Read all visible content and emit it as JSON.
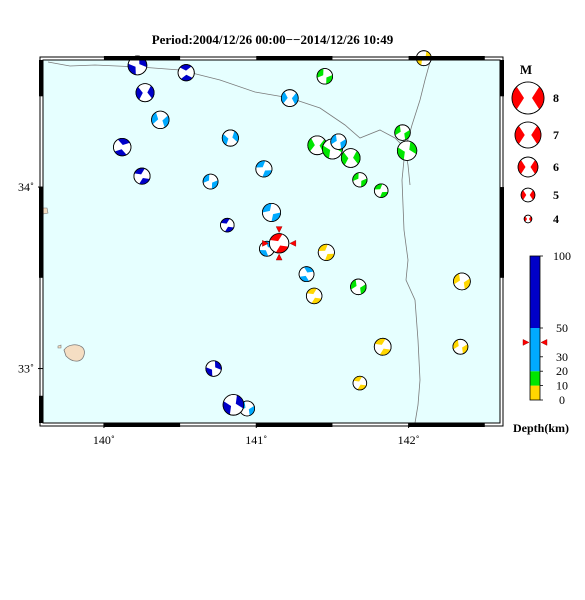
{
  "title": "Period:2004/12/26 00:00−−2014/12/26 10:49",
  "map": {
    "lon_range": [
      139.6,
      142.6
    ],
    "lat_range": [
      32.7,
      34.7
    ],
    "xticks": [
      {
        "value": 140,
        "label": "140˚"
      },
      {
        "value": 141,
        "label": "141˚"
      },
      {
        "value": 142,
        "label": "142˚"
      }
    ],
    "yticks": [
      {
        "value": 33,
        "label": "33˚"
      },
      {
        "value": 34,
        "label": "34˚"
      }
    ],
    "colors": {
      "ocean": "#e6ffff",
      "land": "#f5dec3",
      "coast": "#7a7a7a"
    }
  },
  "legend_magnitude": {
    "header": "M",
    "items": [
      {
        "label": "8",
        "value": 8
      },
      {
        "label": "7",
        "value": 7
      },
      {
        "label": "6",
        "value": 6
      },
      {
        "label": "5",
        "value": 5
      },
      {
        "label": "4",
        "value": 4
      }
    ]
  },
  "legend_depth": {
    "title": "Depth(km)",
    "ticks": [
      {
        "label": "100",
        "value": 100
      },
      {
        "label": "50",
        "value": 50
      },
      {
        "label": "30",
        "value": 30
      },
      {
        "label": "20",
        "value": 20
      },
      {
        "label": "10",
        "value": 10
      },
      {
        "label": "0",
        "value": 0
      }
    ],
    "bands": [
      {
        "from": 0,
        "to": 10,
        "color": "#ffd700"
      },
      {
        "from": 10,
        "to": 20,
        "color": "#00e600"
      },
      {
        "from": 20,
        "to": 50,
        "color": "#00aaff"
      },
      {
        "from": 50,
        "to": 100,
        "color": "#0000c8"
      }
    ],
    "marker_depth": 40
  },
  "events": [
    {
      "lon": 140.22,
      "lat": 34.67,
      "mag": 6.0,
      "depth": 70,
      "strike": 100
    },
    {
      "lon": 140.27,
      "lat": 34.52,
      "mag": 5.9,
      "depth": 70,
      "strike": 130
    },
    {
      "lon": 140.54,
      "lat": 34.63,
      "mag": 5.6,
      "depth": 60,
      "strike": 40
    },
    {
      "lon": 140.37,
      "lat": 34.37,
      "mag": 5.8,
      "depth": 40,
      "strike": 150
    },
    {
      "lon": 140.12,
      "lat": 34.22,
      "mag": 5.8,
      "depth": 70,
      "strike": 60
    },
    {
      "lon": 140.25,
      "lat": 34.06,
      "mag": 5.6,
      "depth": 70,
      "strike": 20
    },
    {
      "lon": 140.83,
      "lat": 34.27,
      "mag": 5.6,
      "depth": 40,
      "strike": 120
    },
    {
      "lon": 141.22,
      "lat": 34.49,
      "mag": 5.7,
      "depth": 40,
      "strike": 140
    },
    {
      "lon": 140.7,
      "lat": 34.03,
      "mag": 5.4,
      "depth": 40,
      "strike": 170
    },
    {
      "lon": 141.05,
      "lat": 34.1,
      "mag": 5.6,
      "depth": 40,
      "strike": 10
    },
    {
      "lon": 140.81,
      "lat": 33.79,
      "mag": 5.2,
      "depth": 60,
      "strike": 20
    },
    {
      "lon": 141.1,
      "lat": 33.86,
      "mag": 5.9,
      "depth": 40,
      "strike": 0
    },
    {
      "lon": 141.07,
      "lat": 33.66,
      "mag": 5.4,
      "depth": 40,
      "strike": 80
    },
    {
      "lon": 141.15,
      "lat": 33.69,
      "mag": 6.1,
      "depth": 40,
      "strike": 20,
      "highlight": true
    },
    {
      "lon": 141.45,
      "lat": 34.61,
      "mag": 5.5,
      "depth": 15,
      "strike": 170
    },
    {
      "lon": 141.4,
      "lat": 34.23,
      "mag": 6.0,
      "depth": 15,
      "strike": 140
    },
    {
      "lon": 141.5,
      "lat": 34.21,
      "mag": 6.2,
      "depth": 15,
      "strike": 110
    },
    {
      "lon": 141.54,
      "lat": 34.25,
      "mag": 5.5,
      "depth": 40,
      "strike": 160
    },
    {
      "lon": 141.62,
      "lat": 34.16,
      "mag": 6.0,
      "depth": 15,
      "strike": 130
    },
    {
      "lon": 141.68,
      "lat": 34.04,
      "mag": 5.3,
      "depth": 15,
      "strike": 170
    },
    {
      "lon": 141.82,
      "lat": 33.98,
      "mag": 5.2,
      "depth": 15,
      "strike": 10
    },
    {
      "lon": 141.96,
      "lat": 34.3,
      "mag": 5.5,
      "depth": 15,
      "strike": 160
    },
    {
      "lon": 141.99,
      "lat": 34.2,
      "mag": 6.1,
      "depth": 15,
      "strike": 110
    },
    {
      "lon": 142.1,
      "lat": 34.71,
      "mag": 5.4,
      "depth": 5,
      "strike": 110
    },
    {
      "lon": 141.33,
      "lat": 33.52,
      "mag": 5.4,
      "depth": 40,
      "strike": 70
    },
    {
      "lon": 141.46,
      "lat": 33.64,
      "mag": 5.6,
      "depth": 5,
      "strike": 10
    },
    {
      "lon": 141.38,
      "lat": 33.4,
      "mag": 5.5,
      "depth": 5,
      "strike": 20
    },
    {
      "lon": 141.67,
      "lat": 33.45,
      "mag": 5.5,
      "depth": 15,
      "strike": 160
    },
    {
      "lon": 141.83,
      "lat": 33.12,
      "mag": 5.7,
      "depth": 5,
      "strike": 20
    },
    {
      "lon": 141.68,
      "lat": 32.92,
      "mag": 5.2,
      "depth": 5,
      "strike": 20
    },
    {
      "lon": 142.35,
      "lat": 33.48,
      "mag": 5.7,
      "depth": 5,
      "strike": 160
    },
    {
      "lon": 142.34,
      "lat": 33.12,
      "mag": 5.4,
      "depth": 5,
      "strike": 160
    },
    {
      "lon": 140.72,
      "lat": 33.0,
      "mag": 5.5,
      "depth": 70,
      "strike": 100
    },
    {
      "lon": 140.94,
      "lat": 32.78,
      "mag": 5.4,
      "depth": 40,
      "strike": 160
    },
    {
      "lon": 140.85,
      "lat": 32.8,
      "mag": 6.3,
      "depth": 70,
      "strike": 110
    }
  ]
}
